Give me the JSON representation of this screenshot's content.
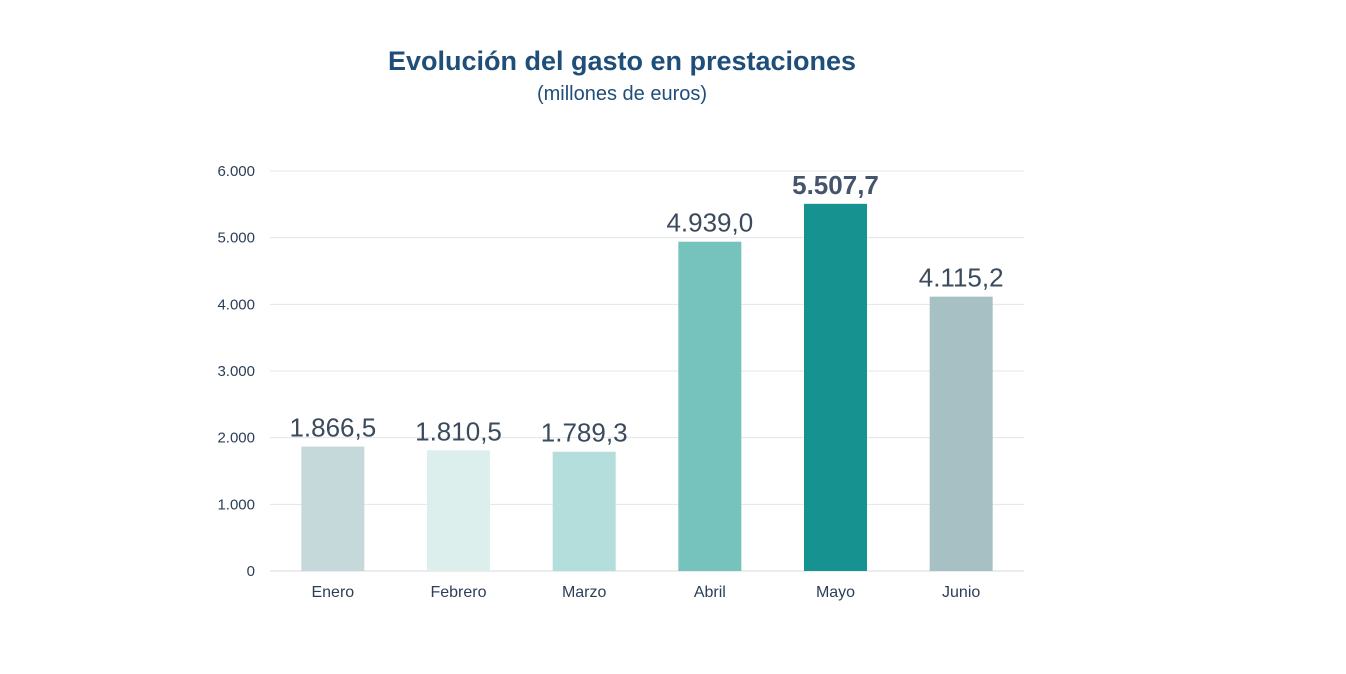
{
  "chart_data": {
    "type": "bar",
    "title": "Evolución del gasto en prestaciones",
    "subtitle": "(millones de euros)",
    "xlabel": "",
    "ylabel": "",
    "categories": [
      "Enero",
      "Febrero",
      "Marzo",
      "Abril",
      "Mayo",
      "Junio"
    ],
    "values": [
      1866.5,
      1810.5,
      1789.3,
      4939.0,
      5507.7,
      4115.2
    ],
    "value_labels": [
      "1.866,5",
      "1.810,5",
      "1.789,3",
      "4.939,0",
      "5.507,7",
      "4.115,2"
    ],
    "bar_colors": [
      "#c5d8da",
      "#dcefed",
      "#b3dedb",
      "#75c3bc",
      "#169390",
      "#a7c0c3"
    ],
    "highlight_index": 4,
    "ylim": [
      0,
      6000
    ],
    "yticks": [
      0,
      1000,
      2000,
      3000,
      4000,
      5000,
      6000
    ],
    "ytick_labels": [
      "0",
      "1.000",
      "2.000",
      "3.000",
      "4.000",
      "5.000",
      "6.000"
    ],
    "grid": true,
    "legend": "none"
  }
}
